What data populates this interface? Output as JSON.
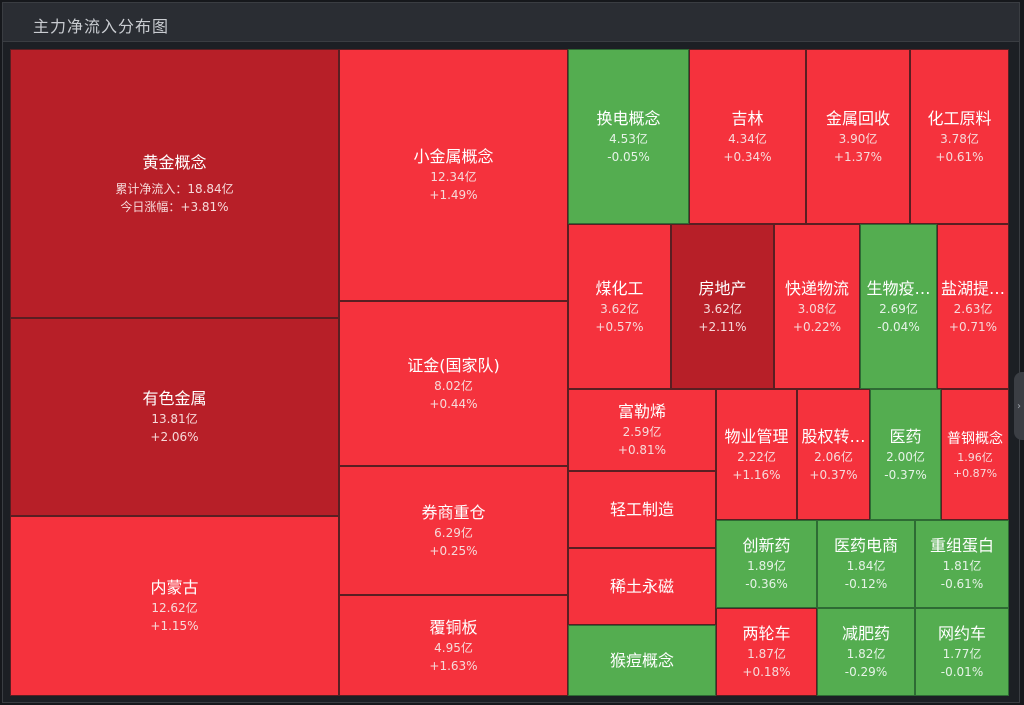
{
  "header": {
    "title": "主力净流入分布图"
  },
  "colors": {
    "red": "#f5323d",
    "dark_red": "#b71f28",
    "green": "#54ad50"
  },
  "ui": {
    "collapse_handle": "›"
  },
  "chart_data": {
    "type": "treemap",
    "title": "主力净流入分布图",
    "value_unit": "亿",
    "items": [
      {
        "name": "黄金概念",
        "value": 18.84,
        "change": 3.81,
        "value_text": "累计净流入：18.84亿",
        "change_text": "今日涨幅：+3.81%",
        "color": "dark_red"
      },
      {
        "name": "有色金属",
        "value": 13.81,
        "change": 2.06,
        "value_text": "13.81亿",
        "change_text": "+2.06%",
        "color": "dark_red"
      },
      {
        "name": "内蒙古",
        "value": 12.62,
        "change": 1.15,
        "value_text": "12.62亿",
        "change_text": "+1.15%",
        "color": "red"
      },
      {
        "name": "小金属概念",
        "value": 12.34,
        "change": 1.49,
        "value_text": "12.34亿",
        "change_text": "+1.49%",
        "color": "red"
      },
      {
        "name": "证金(国家队)",
        "value": 8.02,
        "change": 0.44,
        "value_text": "8.02亿",
        "change_text": "+0.44%",
        "color": "red"
      },
      {
        "name": "券商重仓",
        "value": 6.29,
        "change": 0.25,
        "value_text": "6.29亿",
        "change_text": "+0.25%",
        "color": "red"
      },
      {
        "name": "覆铜板",
        "value": 4.95,
        "change": 1.63,
        "value_text": "4.95亿",
        "change_text": "+1.63%",
        "color": "red"
      },
      {
        "name": "换电概念",
        "value": 4.53,
        "change": -0.05,
        "value_text": "4.53亿",
        "change_text": "-0.05%",
        "color": "green"
      },
      {
        "name": "吉林",
        "value": 4.34,
        "change": 0.34,
        "value_text": "4.34亿",
        "change_text": "+0.34%",
        "color": "red"
      },
      {
        "name": "金属回收",
        "value": 3.9,
        "change": 1.37,
        "value_text": "3.90亿",
        "change_text": "+1.37%",
        "color": "red"
      },
      {
        "name": "化工原料",
        "value": 3.78,
        "change": 0.61,
        "value_text": "3.78亿",
        "change_text": "+0.61%",
        "color": "red"
      },
      {
        "name": "煤化工",
        "value": 3.62,
        "change": 0.57,
        "value_text": "3.62亿",
        "change_text": "+0.57%",
        "color": "red"
      },
      {
        "name": "房地产",
        "value": 3.62,
        "change": 2.11,
        "value_text": "3.62亿",
        "change_text": "+2.11%",
        "color": "dark_red"
      },
      {
        "name": "快递物流",
        "value": 3.08,
        "change": 0.22,
        "value_text": "3.08亿",
        "change_text": "+0.22%",
        "color": "red"
      },
      {
        "name": "生物疫…",
        "value": 2.69,
        "change": -0.04,
        "value_text": "2.69亿",
        "change_text": "-0.04%",
        "color": "green"
      },
      {
        "name": "盐湖提…",
        "value": 2.63,
        "change": 0.71,
        "value_text": "2.63亿",
        "change_text": "+0.71%",
        "color": "red"
      },
      {
        "name": "富勒烯",
        "value": 2.59,
        "change": 0.81,
        "value_text": "2.59亿",
        "change_text": "+0.81%",
        "color": "red"
      },
      {
        "name": "物业管理",
        "value": 2.22,
        "change": 1.16,
        "value_text": "2.22亿",
        "change_text": "+1.16%",
        "color": "red"
      },
      {
        "name": "股权转…",
        "value": 2.06,
        "change": 0.37,
        "value_text": "2.06亿",
        "change_text": "+0.37%",
        "color": "red"
      },
      {
        "name": "医药",
        "value": 2.0,
        "change": -0.37,
        "value_text": "2.00亿",
        "change_text": "-0.37%",
        "color": "green"
      },
      {
        "name": "普钢概念",
        "value": 1.96,
        "change": 0.87,
        "value_text": "1.96亿",
        "change_text": "+0.87%",
        "color": "red"
      },
      {
        "name": "轻工制造",
        "value": null,
        "change": null,
        "value_text": "",
        "change_text": "",
        "color": "red"
      },
      {
        "name": "稀土永磁",
        "value": null,
        "change": null,
        "value_text": "",
        "change_text": "",
        "color": "red"
      },
      {
        "name": "猴痘概念",
        "value": null,
        "change": null,
        "value_text": "",
        "change_text": "",
        "color": "green"
      },
      {
        "name": "创新药",
        "value": 1.89,
        "change": -0.36,
        "value_text": "1.89亿",
        "change_text": "-0.36%",
        "color": "green"
      },
      {
        "name": "医药电商",
        "value": 1.84,
        "change": -0.12,
        "value_text": "1.84亿",
        "change_text": "-0.12%",
        "color": "green"
      },
      {
        "name": "重组蛋白",
        "value": 1.81,
        "change": -0.61,
        "value_text": "1.81亿",
        "change_text": "-0.61%",
        "color": "green"
      },
      {
        "name": "两轮车",
        "value": 1.87,
        "change": 0.18,
        "value_text": "1.87亿",
        "change_text": "+0.18%",
        "color": "red"
      },
      {
        "name": "减肥药",
        "value": 1.82,
        "change": -0.29,
        "value_text": "1.82亿",
        "change_text": "-0.29%",
        "color": "green"
      },
      {
        "name": "网约车",
        "value": 1.77,
        "change": -0.01,
        "value_text": "1.77亿",
        "change_text": "-0.01%",
        "color": "green"
      }
    ]
  }
}
